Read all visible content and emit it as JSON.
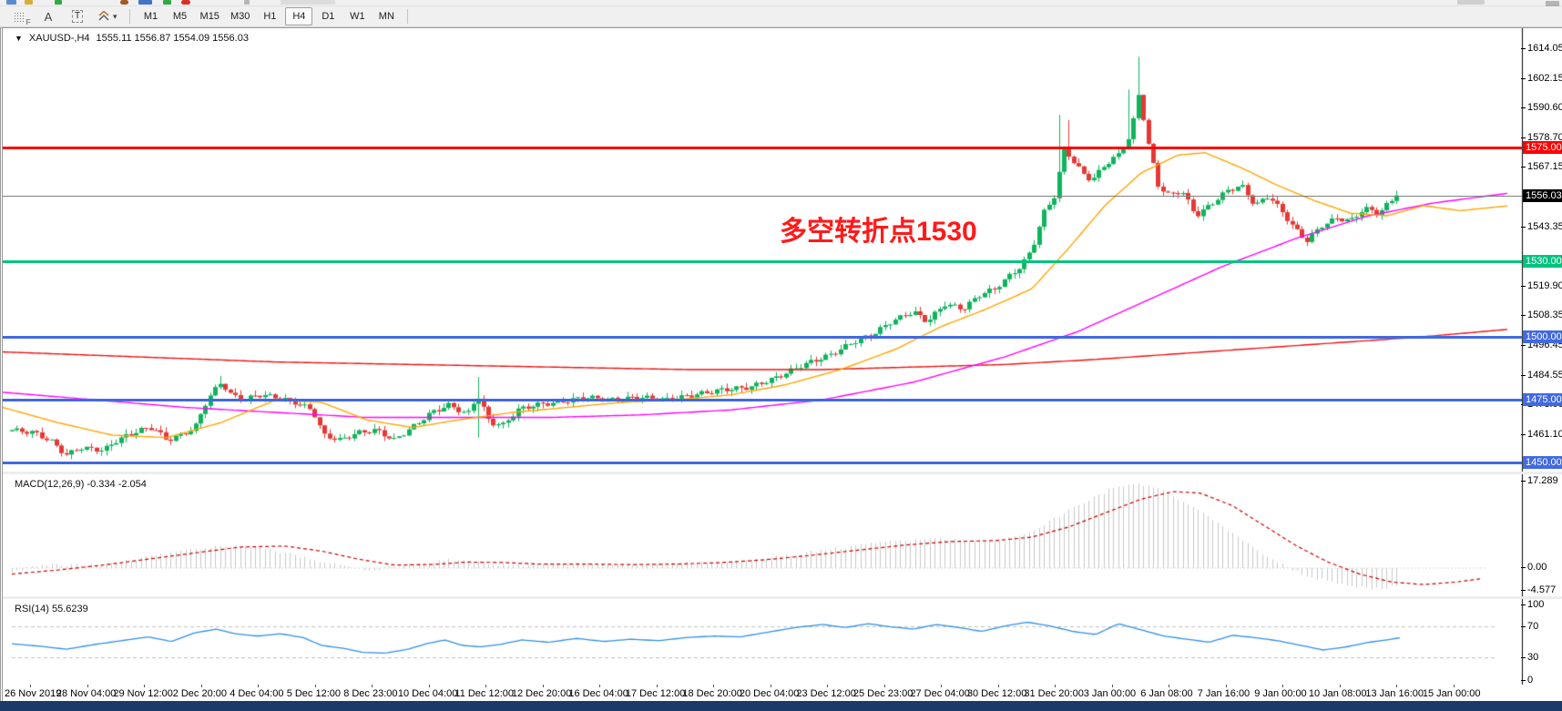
{
  "toolbar": {
    "tools": [
      {
        "icon": "grid-cursor-icon",
        "label": "F"
      },
      {
        "icon": "text-label-icon",
        "label": "A"
      },
      {
        "icon": "text-box-icon",
        "label": "T"
      },
      {
        "icon": "objects-arrows-icon",
        "label": ""
      }
    ],
    "timeframes": [
      "M1",
      "M5",
      "M15",
      "M30",
      "H1",
      "H4",
      "D1",
      "W1",
      "MN"
    ],
    "selected_timeframe": "H4"
  },
  "chart": {
    "title_symbol": "XAUUSD-,H4",
    "title_ohlc": "1555.11 1556.87 1554.09 1556.03",
    "ohlc": {
      "open": "1555.11",
      "high": "1556.87",
      "low": "1554.09",
      "close": "1556.03"
    },
    "current_price_label": "1556.03",
    "up_color": "#0fb45c",
    "down_color": "#e53935",
    "annotation": {
      "text": "多空转折点1530",
      "color": "#ff1a1a"
    },
    "levels": [
      {
        "label": "1575.00",
        "price": 1575.0,
        "color": "#ff0000"
      },
      {
        "label": "1530.00",
        "price": 1530.0,
        "color": "#00c47e"
      },
      {
        "label": "1500.00",
        "price": 1500.0,
        "color": "#4169e1"
      },
      {
        "label": "1475.00",
        "price": 1475.0,
        "color": "#4169e1"
      },
      {
        "label": "1450.00",
        "price": 1450.0,
        "color": "#4169e1"
      }
    ],
    "y_ticks": [
      1614.05,
      1602.15,
      1590.6,
      1578.7,
      1567.15,
      1543.35,
      1519.9,
      1508.35,
      1496.45,
      1484.55,
      1473.0,
      1461.1
    ]
  },
  "macd": {
    "label": "MACD(12,26,9) -0.334 -2.054",
    "ticks": [
      17.289,
      0.0,
      -4.577
    ],
    "hist_color": "#c8c8c8",
    "signal_color": "#cc0000"
  },
  "rsi": {
    "label": "RSI(14) 55.6239",
    "ticks": [
      100,
      70,
      30,
      0
    ],
    "line_color": "#2f8fe8",
    "level_lines": [
      70,
      30
    ]
  },
  "time_axis": [
    "26 Nov 2019",
    "28 Nov 04:00",
    "29 Nov 12:00",
    "2 Dec 20:00",
    "4 Dec 04:00",
    "5 Dec 12:00",
    "8 Dec 23:00",
    "10 Dec 04:00",
    "11 Dec 12:00",
    "12 Dec 20:00",
    "16 Dec 04:00",
    "17 Dec 12:00",
    "18 Dec 20:00",
    "20 Dec 04:00",
    "23 Dec 12:00",
    "25 Dec 23:00",
    "27 Dec 04:00",
    "30 Dec 12:00",
    "31 Dec 20:00",
    "3 Jan 00:00",
    "6 Jan 08:00",
    "7 Jan 16:00",
    "9 Jan 00:00",
    "10 Jan 08:00",
    "13 Jan 16:00",
    "15 Jan 00:00"
  ],
  "chart_data": {
    "type": "candlestick+indicators",
    "symbol": "XAUUSD-",
    "timeframe": "H4",
    "y_axis_range": [
      1449,
      1618
    ],
    "last_close": 1556.03,
    "price_path": [
      [
        0.0,
        1463
      ],
      [
        0.016,
        1462
      ],
      [
        0.03,
        1458
      ],
      [
        0.039,
        1453
      ],
      [
        0.049,
        1456
      ],
      [
        0.066,
        1455
      ],
      [
        0.076,
        1459
      ],
      [
        0.092,
        1463
      ],
      [
        0.102,
        1464
      ],
      [
        0.112,
        1459
      ],
      [
        0.122,
        1461
      ],
      [
        0.132,
        1464
      ],
      [
        0.141,
        1475
      ],
      [
        0.151,
        1482
      ],
      [
        0.158,
        1477
      ],
      [
        0.168,
        1475
      ],
      [
        0.178,
        1477
      ],
      [
        0.191,
        1476
      ],
      [
        0.204,
        1474
      ],
      [
        0.217,
        1471
      ],
      [
        0.225,
        1461
      ],
      [
        0.237,
        1459
      ],
      [
        0.25,
        1462
      ],
      [
        0.263,
        1463
      ],
      [
        0.276,
        1459
      ],
      [
        0.289,
        1464
      ],
      [
        0.303,
        1470
      ],
      [
        0.316,
        1473
      ],
      [
        0.329,
        1469
      ],
      [
        0.336,
        1477
      ],
      [
        0.345,
        1466
      ],
      [
        0.355,
        1465
      ],
      [
        0.365,
        1471
      ],
      [
        0.378,
        1473
      ],
      [
        0.395,
        1474
      ],
      [
        0.414,
        1476
      ],
      [
        0.434,
        1475
      ],
      [
        0.454,
        1476
      ],
      [
        0.474,
        1475
      ],
      [
        0.493,
        1477
      ],
      [
        0.513,
        1479
      ],
      [
        0.533,
        1480
      ],
      [
        0.553,
        1484
      ],
      [
        0.572,
        1489
      ],
      [
        0.592,
        1493
      ],
      [
        0.608,
        1498
      ],
      [
        0.622,
        1501
      ],
      [
        0.635,
        1506
      ],
      [
        0.651,
        1510
      ],
      [
        0.661,
        1506
      ],
      [
        0.674,
        1513
      ],
      [
        0.687,
        1511
      ],
      [
        0.7,
        1517
      ],
      [
        0.71,
        1519
      ],
      [
        0.72,
        1524
      ],
      [
        0.729,
        1528
      ],
      [
        0.737,
        1535
      ],
      [
        0.745,
        1549
      ],
      [
        0.753,
        1556
      ],
      [
        0.76,
        1575
      ],
      [
        0.766,
        1570
      ],
      [
        0.773,
        1565
      ],
      [
        0.78,
        1562
      ],
      [
        0.789,
        1568
      ],
      [
        0.799,
        1572
      ],
      [
        0.808,
        1580
      ],
      [
        0.814,
        1597
      ],
      [
        0.82,
        1578
      ],
      [
        0.828,
        1560
      ],
      [
        0.836,
        1556
      ],
      [
        0.845,
        1558
      ],
      [
        0.855,
        1548
      ],
      [
        0.865,
        1552
      ],
      [
        0.878,
        1558
      ],
      [
        0.888,
        1560
      ],
      [
        0.898,
        1552
      ],
      [
        0.908,
        1556
      ],
      [
        0.918,
        1549
      ],
      [
        0.928,
        1542
      ],
      [
        0.935,
        1538
      ],
      [
        0.946,
        1544
      ],
      [
        0.957,
        1547
      ],
      [
        0.967,
        1546
      ],
      [
        0.977,
        1551
      ],
      [
        0.987,
        1549
      ],
      [
        1.0,
        1556
      ]
    ],
    "spikes": [
      {
        "f": 0.151,
        "high": 1484.5
      },
      {
        "f": 0.336,
        "high": 1484,
        "low": 1460
      },
      {
        "f": 0.757,
        "high": 1588
      },
      {
        "f": 0.762,
        "high": 1586
      },
      {
        "f": 0.808,
        "high": 1598
      },
      {
        "f": 0.814,
        "high": 1611
      },
      {
        "f": 0.935,
        "low": 1536
      }
    ],
    "ma_fast_orange": [
      [
        0,
        1472
      ],
      [
        60,
        1466
      ],
      [
        120,
        1461
      ],
      [
        180,
        1460
      ],
      [
        240,
        1466
      ],
      [
        300,
        1475
      ],
      [
        350,
        1474
      ],
      [
        400,
        1467
      ],
      [
        450,
        1464
      ],
      [
        500,
        1467
      ],
      [
        560,
        1470
      ],
      [
        620,
        1472
      ],
      [
        680,
        1474
      ],
      [
        740,
        1475
      ],
      [
        800,
        1477
      ],
      [
        860,
        1481
      ],
      [
        920,
        1487
      ],
      [
        980,
        1495
      ],
      [
        1030,
        1504
      ],
      [
        1080,
        1511
      ],
      [
        1130,
        1519
      ],
      [
        1170,
        1535
      ],
      [
        1210,
        1552
      ],
      [
        1250,
        1565
      ],
      [
        1290,
        1572
      ],
      [
        1320,
        1573
      ],
      [
        1360,
        1567
      ],
      [
        1400,
        1560
      ],
      [
        1440,
        1554
      ],
      [
        1480,
        1549
      ],
      [
        1520,
        1548
      ],
      [
        1560,
        1552
      ],
      [
        1600,
        1550
      ],
      [
        1655,
        1552
      ]
    ],
    "ma_mid_magenta": [
      [
        0,
        1478
      ],
      [
        100,
        1475
      ],
      [
        200,
        1472
      ],
      [
        300,
        1470
      ],
      [
        400,
        1468
      ],
      [
        500,
        1468
      ],
      [
        600,
        1468
      ],
      [
        700,
        1469
      ],
      [
        800,
        1471
      ],
      [
        900,
        1475
      ],
      [
        1000,
        1482
      ],
      [
        1100,
        1492
      ],
      [
        1180,
        1502
      ],
      [
        1260,
        1515
      ],
      [
        1340,
        1528
      ],
      [
        1420,
        1539
      ],
      [
        1500,
        1548
      ],
      [
        1570,
        1553
      ],
      [
        1655,
        1557
      ]
    ],
    "ma_slow_red": [
      [
        0,
        1494
      ],
      [
        150,
        1492
      ],
      [
        300,
        1490
      ],
      [
        450,
        1489
      ],
      [
        600,
        1488
      ],
      [
        750,
        1487
      ],
      [
        900,
        1487
      ],
      [
        1000,
        1488
      ],
      [
        1100,
        1489
      ],
      [
        1200,
        1491
      ],
      [
        1320,
        1494
      ],
      [
        1440,
        1497
      ],
      [
        1560,
        1500
      ],
      [
        1655,
        1503
      ]
    ],
    "macd_hist": [
      [
        10,
        -0.6
      ],
      [
        50,
        0.8
      ],
      [
        90,
        0.4
      ],
      [
        130,
        1.2
      ],
      [
        170,
        2.6
      ],
      [
        210,
        3.8
      ],
      [
        250,
        4.4
      ],
      [
        290,
        3.8
      ],
      [
        330,
        2.2
      ],
      [
        370,
        0.6
      ],
      [
        400,
        -0.4
      ],
      [
        430,
        0.2
      ],
      [
        460,
        1.0
      ],
      [
        490,
        1.6
      ],
      [
        520,
        1.2
      ],
      [
        550,
        0.4
      ],
      [
        590,
        0.7
      ],
      [
        630,
        0.9
      ],
      [
        670,
        0.6
      ],
      [
        710,
        0.7
      ],
      [
        750,
        0.9
      ],
      [
        790,
        1.3
      ],
      [
        830,
        1.9
      ],
      [
        870,
        2.8
      ],
      [
        910,
        3.8
      ],
      [
        950,
        4.8
      ],
      [
        990,
        5.4
      ],
      [
        1030,
        5.9
      ],
      [
        1070,
        5.2
      ],
      [
        1100,
        5.4
      ],
      [
        1130,
        7.5
      ],
      [
        1160,
        10.5
      ],
      [
        1190,
        13.5
      ],
      [
        1220,
        16.2
      ],
      [
        1245,
        17.1
      ],
      [
        1270,
        15.8
      ],
      [
        1300,
        13.0
      ],
      [
        1330,
        9.5
      ],
      [
        1365,
        5.0
      ],
      [
        1400,
        1.0
      ],
      [
        1435,
        -1.8
      ],
      [
        1470,
        -3.2
      ],
      [
        1505,
        -4.3
      ],
      [
        1535,
        -3.4
      ],
      [
        1565,
        -2.4
      ],
      [
        1600,
        -1.2
      ]
    ],
    "macd_signal": [
      [
        10,
        -1.2
      ],
      [
        60,
        -0.4
      ],
      [
        110,
        0.6
      ],
      [
        160,
        1.8
      ],
      [
        210,
        3.0
      ],
      [
        260,
        4.2
      ],
      [
        310,
        4.4
      ],
      [
        350,
        3.4
      ],
      [
        390,
        1.8
      ],
      [
        430,
        0.6
      ],
      [
        470,
        0.7
      ],
      [
        510,
        1.2
      ],
      [
        550,
        1.1
      ],
      [
        590,
        0.8
      ],
      [
        640,
        0.8
      ],
      [
        690,
        0.7
      ],
      [
        740,
        0.8
      ],
      [
        790,
        1.1
      ],
      [
        840,
        1.7
      ],
      [
        890,
        2.6
      ],
      [
        940,
        3.6
      ],
      [
        990,
        4.6
      ],
      [
        1040,
        5.3
      ],
      [
        1090,
        5.5
      ],
      [
        1130,
        6.2
      ],
      [
        1170,
        8.2
      ],
      [
        1210,
        11.0
      ],
      [
        1250,
        13.8
      ],
      [
        1285,
        15.3
      ],
      [
        1315,
        15.0
      ],
      [
        1350,
        12.5
      ],
      [
        1385,
        8.5
      ],
      [
        1420,
        4.5
      ],
      [
        1455,
        1.2
      ],
      [
        1490,
        -1.2
      ],
      [
        1525,
        -2.8
      ],
      [
        1560,
        -3.3
      ],
      [
        1595,
        -2.8
      ],
      [
        1625,
        -2.1
      ]
    ],
    "rsi_line": [
      [
        10,
        48
      ],
      [
        40,
        45
      ],
      [
        70,
        41
      ],
      [
        100,
        47
      ],
      [
        130,
        52
      ],
      [
        160,
        57
      ],
      [
        185,
        51
      ],
      [
        210,
        62
      ],
      [
        235,
        67
      ],
      [
        255,
        61
      ],
      [
        280,
        58
      ],
      [
        305,
        61
      ],
      [
        330,
        56
      ],
      [
        350,
        46
      ],
      [
        375,
        42
      ],
      [
        395,
        37
      ],
      [
        420,
        36
      ],
      [
        445,
        41
      ],
      [
        465,
        48
      ],
      [
        485,
        53
      ],
      [
        505,
        46
      ],
      [
        525,
        44
      ],
      [
        545,
        47
      ],
      [
        570,
        53
      ],
      [
        600,
        50
      ],
      [
        630,
        55
      ],
      [
        660,
        51
      ],
      [
        690,
        54
      ],
      [
        720,
        52
      ],
      [
        750,
        56
      ],
      [
        780,
        58
      ],
      [
        810,
        57
      ],
      [
        840,
        63
      ],
      [
        870,
        69
      ],
      [
        900,
        73
      ],
      [
        925,
        69
      ],
      [
        950,
        74
      ],
      [
        975,
        70
      ],
      [
        1000,
        67
      ],
      [
        1025,
        73
      ],
      [
        1050,
        69
      ],
      [
        1075,
        64
      ],
      [
        1100,
        71
      ],
      [
        1125,
        76
      ],
      [
        1150,
        71
      ],
      [
        1175,
        64
      ],
      [
        1200,
        60
      ],
      [
        1225,
        74
      ],
      [
        1250,
        66
      ],
      [
        1275,
        58
      ],
      [
        1300,
        54
      ],
      [
        1325,
        50
      ],
      [
        1350,
        59
      ],
      [
        1375,
        56
      ],
      [
        1400,
        52
      ],
      [
        1425,
        46
      ],
      [
        1450,
        40
      ],
      [
        1475,
        44
      ],
      [
        1500,
        50
      ],
      [
        1520,
        53
      ],
      [
        1535,
        56
      ]
    ]
  }
}
